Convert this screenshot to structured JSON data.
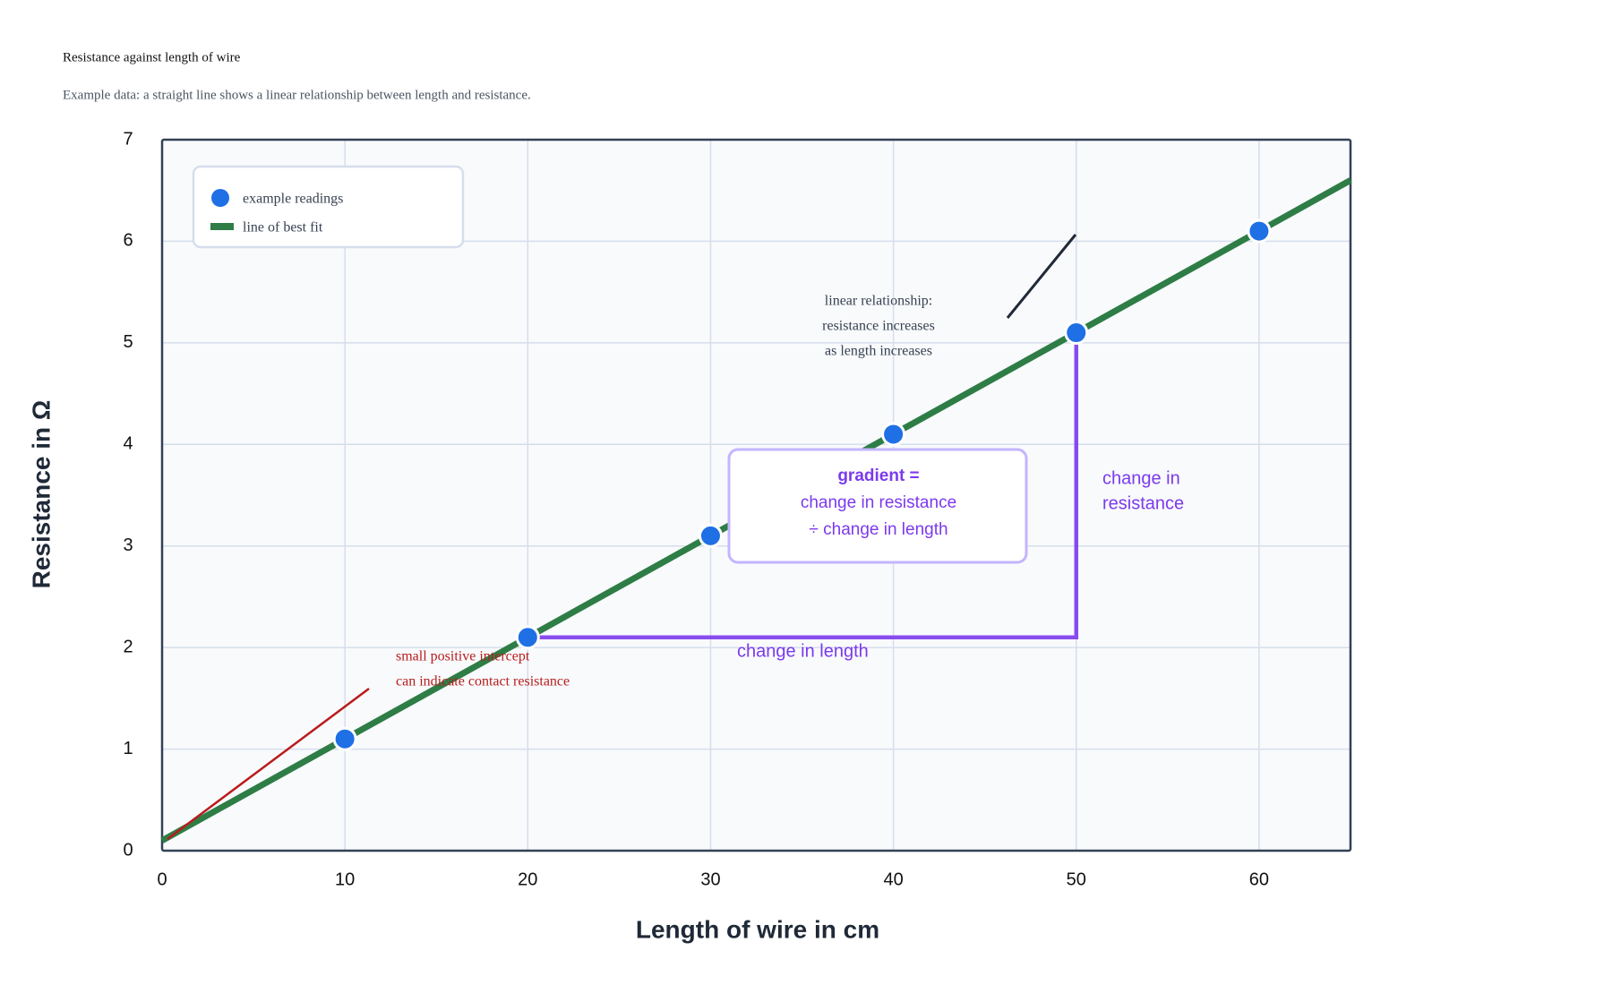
{
  "chart_data": {
    "type": "scatter",
    "title": "Resistance against length of wire",
    "subtitle": "Example data: a straight line shows a linear relationship between length and resistance.",
    "x_label": "Length of wire in cm",
    "y_label": "Resistance in Ω",
    "xlim": [
      0,
      65
    ],
    "ylim": [
      0,
      7
    ],
    "xticks": [
      0,
      10,
      20,
      30,
      40,
      50,
      60
    ],
    "yticks": [
      0,
      1,
      2,
      3,
      4,
      5,
      6,
      7
    ],
    "grid": true,
    "legend": "upper left",
    "series": [
      {
        "name": "example readings",
        "type": "scatter",
        "color": "#1f6fe5",
        "x": [
          10,
          20,
          30,
          40,
          50,
          60
        ],
        "values": [
          1.1,
          2.1,
          3.1,
          4.1,
          5.1,
          6.1
        ]
      },
      {
        "name": "line of best fit",
        "type": "line",
        "color": "#2e7d46",
        "x": [
          0,
          65
        ],
        "values": [
          0.1,
          6.6
        ]
      }
    ],
    "annotations": [
      {
        "lines": [
          "linear relationship:",
          "resistance increases",
          "as length increases"
        ],
        "color": "#374151"
      },
      {
        "lines": [
          "small positive intercept",
          "can indicate contact resistance"
        ],
        "color": "#b91c1c"
      }
    ],
    "gradient": {
      "color": "#7c3aed",
      "box_lines": [
        "gradient =",
        "change in resistance",
        "÷ change in length"
      ],
      "rise_lines": [
        "change in",
        "resistance"
      ],
      "run_label": "change in length"
    }
  }
}
